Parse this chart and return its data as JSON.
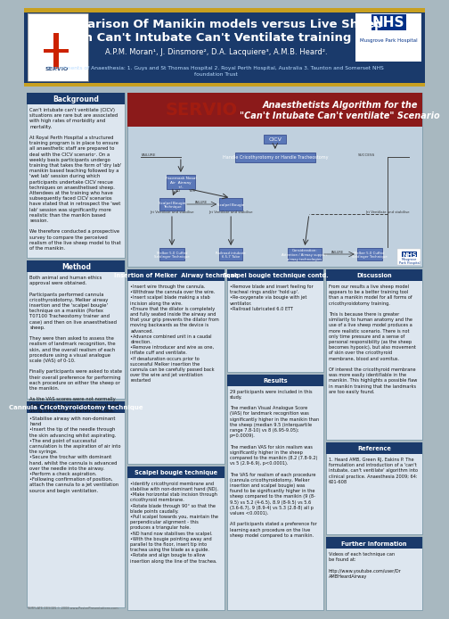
{
  "title_line1": "Comparison Of Manikin models versus Live Sheep",
  "title_line2": "in Can't Intubate Can't Ventilate training",
  "authors": "A.P.M. Moran¹, J. Dinsmore², D.A. Lacquiere³, A.M.B. Heard².",
  "departments": "Departments of Anaesthesia: 1. Guys and St Thomas Hospital 2. Royal Perth Hospital, Australia 3. Taunton and Somerset NHS\nfoundation Trust",
  "header_bg": "#1a3a6b",
  "section_header_bg": "#1a3a6b",
  "flowchart_header_bg": "#8b1a1a",
  "flowchart_title_line1": "Anaesthetists Algorithm for the",
  "flowchart_title_line2": "\"Can't Intubate Can't ventilate\" Scenario",
  "background_section": "Background",
  "background_text": "Can't intubate can't ventilate (CICV)\nsituations are rare but are associated\nwith high rates of morbidity and\nmortality.\n\nAt Royal Perth Hospital a structured\ntraining program is in place to ensure\nall anaesthetic staff are prepared to\ndeal with the CICV scenario¹. On a\nweekly basis participants undergo\ntraining that takes the form of 'dry lab'\nmanikin based teaching followed by a\n'wet lab' session during which\nparticipants undertake CICV rescue\ntechniques on anaesthetised sheep.\nAttendees at the training who have\nsubsequently faced CICV scenarios\nhave stated that in retrospect the 'wet\nlab' session was significantly more\nrealistic than the manikin based\nsession.\n\nWe therefore conducted a prospective\nsurvey to compare the perceived\nrealism of the live sheep model to that\nof the manikin.",
  "method_section": "Method",
  "method_text": "Both animal and human ethics\napproval were obtained.\n\nParticipants performed cannula\ncricothyroidotomy, Melker airway\ninsertion and the 'scalpel bougie'\ntechnique on a manikin (Portex\nT07100 Tracheostomy trainer and\ncase) and then on live anaesthetised\nsheep.\n\nThey were then asked to assess the\nrealism of landmark recognition, the\nskin, and the overall realism of each\nprocedure using a visual analogue\nscale (VAS) of 0-10.\n\nFinally participants were asked to state\ntheir overall preference for performing\neach procedure on either the sheep or\nthe manikin.\n\nAs the VAS scores were not normally\ndistributed, the results were analysed\nusing the Wilcoxon paired-rank test.",
  "cannula_section": "Cannula Cricothyroidotomy technique",
  "cannula_text": "•Stabilise airway with non-dominant\nhand\n•Insert the tip of the needle through\nthe skin advancing whilst aspirating.\n•The end point of successful\ncannulation is the aspiration of air into\nthe syringe.\n•Secure the trochar with dominant\nhand, whilst the cannula is advanced\nover the needle into the airway.\n•Perform a check aspiration.\n•Following confirmation of position,\nattach the cannula to a jet ventilation\nsource and begin ventilation.",
  "melker_section": "Insertion of Melker  Airway technique",
  "melker_text": "•Insert wire through the cannula.\n•Withdraw the cannula over the wire.\n•Insert scalpel blade making a stab\nincision along the wire.\n•Ensure that the dilator is completely\nand fully seated inside the airway and\nthat your grip prevents the dilator from\nmoving backwards as the device is\nadvanced.\n•Advance combined unit in a caudal\ndirection.\n•Remove introducer and wire as one,\ninflate cuff and ventilate.\n•If desaturation occurs prior to\nsuccessful Melker insertion the\ncannula can be carefully passed back\nover the wire and jet ventilation\nrestarted",
  "scalpel_section": "Scalpel bougie technique",
  "scalpel_text": "•Identify cricothyroid membrane and\nstabilise with non-dominant hand (ND).\n•Make horizontal stab incision through\ncricothyroid membrane.\n•Rotate blade through 90° so that the\nblade points caudally.\n•Pull scalpel towards you, maintain the\nperpendicular alignment - this\nproduces a triangular hole.\n•ND hand now stabilises the scalpel.\n•With the bougie pointing away and\nparallel to the floor, insert tip into\ntrachea using the blade as a guide.\n•Rotate and align bougie to allow\ninsertion along the line of the trachea.",
  "scalpel_section2": "Scalpel bougie technique contd.",
  "scalpel_text2": "•Remove blade and insert feeling for\ntracheal rings and/or 'hold up'.\n•Re-oxygenate via bougie with jet\nventilator.\n•Railroad lubricated 6.0 ETT",
  "results_section": "Results",
  "results_text": "29 participants were included in this\nstudy.\n\nThe median Visual Analogue Score\n(VAS) for landmark recognition was\nsignificantly higher in the manikin than\nthe sheep (median 9.5 (interquartile\nrange 7.8-10) vs 8 (6.95-9.05);\np=0.0009).\n\nThe median VAS for skin realism was\nsignificantly higher in the sheep\ncompared to the manikin (8.2 (7.8-9.2)\nvs 5 (2.9-6.9), p<0.0001).\n\nThe VAS for realism of each procedure\n(cannula cricothyroidotomy, Melker\ninsertion and scalpel bougie) was\nfound to be significantly higher in the\nsheep compared to the manikin (9 (8-\n9.5) vs 5.2 (4-6.5), 8.9 (8-9.5) vs 5.6\n(3.6-6.7), 9 (8.9-4) vs 5.3 (2.8-8) all p\nvalues <0.0001).\n\nAll participants stated a preference for\nlearning each procedure on the live\nsheep model compared to a manikin.",
  "discussion_section": "Discussion",
  "discussion_text": "From our results a live sheep model\nappears to be a better training tool\nthan a manikin model for all forms of\ncricothyroidotomy training.\n\nThis is because there is greater\nsimilarity to human anatomy and the\nuse of a live sheep model produces a\nmore realistic scenario. There is not\nonly time pressure and a sense of\npersonal responsibility (as the sheep\nbecomes hypoxic), but also movement\nof skin over the cricothyroid\nmembrane, blood and vomitus.\n\nOf interest the cricothyroid membrane\nwas more easily identifiable in the\nmanikin. This highlights a possible flaw\nin manikin training that the landmarks\nare too easily found.",
  "reference_section": "Reference",
  "reference_text": "1. Heard AMB, Green RJ, Eakins P. The\nformulation and introduction of a 'can't\nintubate, can't ventilate' algorithm into\nclinical practice. Anaesthesia 2009; 64:\n601-608",
  "further_section": "Further Information",
  "further_text": "Videos of each technique can\nbe found at:\n\nhttp://www.youtube.com/user/Dr\nAMBHeardAirway",
  "outer_bg": "#a8b8c0",
  "panel_bg": "#dde6ef",
  "flowchart_bg": "#c0d0de",
  "gold_color": "#c8a020",
  "fc_box_color": "#5b78b8",
  "fc_box_edge": "#3a5090",
  "template_note": "TEMPLATE DESIGN © 2008 www.PosterPresentations.com"
}
